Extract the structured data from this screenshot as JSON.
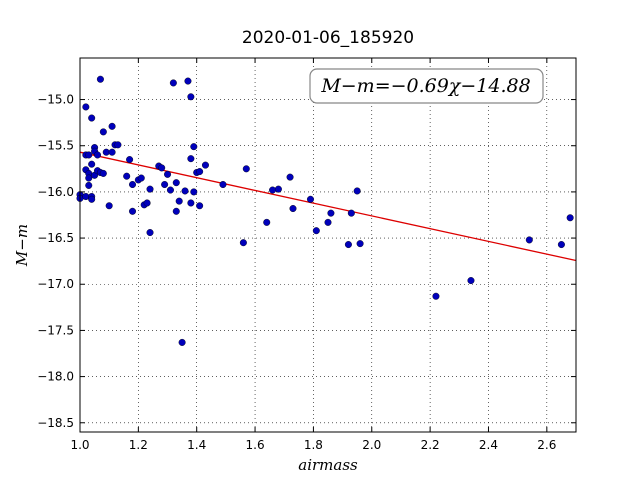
{
  "chart_data": {
    "type": "scatter",
    "title": "2020-01-06_185920",
    "xlabel": "airmass",
    "ylabel": "M−m",
    "xlim": [
      1.0,
      2.7
    ],
    "ylim": [
      -18.6,
      -14.55
    ],
    "x_ticks": [
      1.0,
      1.2,
      1.4,
      1.6,
      1.8,
      2.0,
      2.2,
      2.4,
      2.6
    ],
    "x_tick_labels": [
      "1.0",
      "1.2",
      "1.4",
      "1.6",
      "1.8",
      "2.0",
      "2.2",
      "2.4",
      "2.6"
    ],
    "y_ticks": [
      -15.0,
      -15.5,
      -16.0,
      -16.5,
      -17.0,
      -17.5,
      -18.0,
      -18.5
    ],
    "y_tick_labels": [
      "−15.0",
      "−15.5",
      "−16.0",
      "−16.5",
      "−17.0",
      "−17.5",
      "−18.0",
      "−18.5"
    ],
    "grid": true,
    "annotation": "M−m=−0.69χ−14.88",
    "annotation_placement": "top-right",
    "fit_line": {
      "slope": -0.69,
      "intercept": -14.88,
      "color": "#dd0000"
    },
    "marker_color": "#0000bb",
    "points": [
      [
        1.0,
        -16.03
      ],
      [
        1.0,
        -16.07
      ],
      [
        1.02,
        -15.08
      ],
      [
        1.02,
        -15.6
      ],
      [
        1.02,
        -15.76
      ],
      [
        1.02,
        -16.05
      ],
      [
        1.03,
        -15.6
      ],
      [
        1.03,
        -15.8
      ],
      [
        1.03,
        -15.85
      ],
      [
        1.03,
        -15.93
      ],
      [
        1.04,
        -15.2
      ],
      [
        1.04,
        -15.7
      ],
      [
        1.04,
        -16.05
      ],
      [
        1.04,
        -16.08
      ],
      [
        1.05,
        -15.52
      ],
      [
        1.05,
        -15.56
      ],
      [
        1.05,
        -15.82
      ],
      [
        1.06,
        -15.6
      ],
      [
        1.06,
        -15.77
      ],
      [
        1.07,
        -14.78
      ],
      [
        1.07,
        -15.79
      ],
      [
        1.08,
        -15.35
      ],
      [
        1.08,
        -15.8
      ],
      [
        1.09,
        -15.57
      ],
      [
        1.1,
        -16.15
      ],
      [
        1.11,
        -15.29
      ],
      [
        1.11,
        -15.57
      ],
      [
        1.12,
        -15.49
      ],
      [
        1.13,
        -15.49
      ],
      [
        1.16,
        -15.83
      ],
      [
        1.17,
        -15.65
      ],
      [
        1.18,
        -15.92
      ],
      [
        1.18,
        -16.21
      ],
      [
        1.2,
        -15.87
      ],
      [
        1.21,
        -15.85
      ],
      [
        1.22,
        -16.14
      ],
      [
        1.23,
        -16.12
      ],
      [
        1.24,
        -16.44
      ],
      [
        1.24,
        -15.97
      ],
      [
        1.27,
        -15.72
      ],
      [
        1.28,
        -15.74
      ],
      [
        1.29,
        -15.92
      ],
      [
        1.3,
        -15.81
      ],
      [
        1.31,
        -15.98
      ],
      [
        1.32,
        -14.82
      ],
      [
        1.33,
        -15.9
      ],
      [
        1.33,
        -16.21
      ],
      [
        1.34,
        -16.1
      ],
      [
        1.35,
        -17.63
      ],
      [
        1.36,
        -15.99
      ],
      [
        1.37,
        -14.8
      ],
      [
        1.38,
        -14.97
      ],
      [
        1.38,
        -15.64
      ],
      [
        1.38,
        -16.12
      ],
      [
        1.39,
        -15.51
      ],
      [
        1.39,
        -16.0
      ],
      [
        1.4,
        -15.79
      ],
      [
        1.41,
        -15.78
      ],
      [
        1.41,
        -16.15
      ],
      [
        1.43,
        -15.71
      ],
      [
        1.49,
        -15.92
      ],
      [
        1.56,
        -16.55
      ],
      [
        1.57,
        -15.75
      ],
      [
        1.64,
        -16.33
      ],
      [
        1.66,
        -15.98
      ],
      [
        1.68,
        -15.97
      ],
      [
        1.72,
        -15.84
      ],
      [
        1.73,
        -16.18
      ],
      [
        1.79,
        -16.08
      ],
      [
        1.81,
        -16.42
      ],
      [
        1.85,
        -16.33
      ],
      [
        1.86,
        -16.23
      ],
      [
        1.92,
        -16.57
      ],
      [
        1.93,
        -16.23
      ],
      [
        1.95,
        -15.99
      ],
      [
        1.96,
        -16.56
      ],
      [
        2.22,
        -17.13
      ],
      [
        2.34,
        -16.96
      ],
      [
        2.54,
        -16.52
      ],
      [
        2.65,
        -16.57
      ],
      [
        2.68,
        -16.28
      ]
    ]
  }
}
